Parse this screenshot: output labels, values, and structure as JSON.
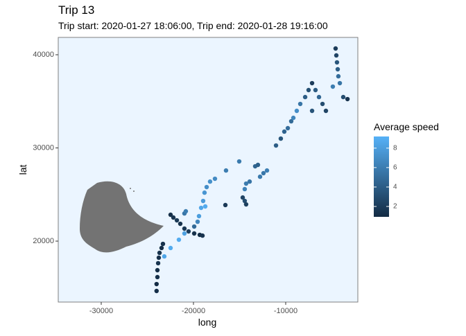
{
  "chart_data": {
    "type": "scatter",
    "title": "Trip 13",
    "subtitle": "Trip start: 2020-01-27 18:06:00, Trip end: 2020-01-28 19:16:00",
    "x_label": "long",
    "y_label": "lat",
    "xlim": [
      -34660,
      -2180
    ],
    "ylim": [
      13460,
      41860
    ],
    "xticks": [
      -30000,
      -20000,
      -10000
    ],
    "yticks": [
      20000,
      30000,
      40000
    ],
    "legend_title": "Average speed",
    "colorlim": [
      0.93,
      9.2
    ],
    "colorticks": [
      2,
      4,
      6,
      8
    ],
    "colorscale": [
      "#132B43",
      "#56B1F7"
    ],
    "land_color": "#737373",
    "panel_color": "#EBF5FF",
    "x": [
      -24000,
      -24000,
      -23910,
      -23910,
      -23830,
      -23760,
      -23680,
      -23460,
      -23310,
      -23160,
      -22480,
      -21580,
      -20980,
      -22480,
      -22180,
      -21800,
      -21430,
      -20980,
      -20530,
      -19920,
      -19320,
      -19020,
      -20980,
      -20830,
      -19920,
      -19550,
      -19400,
      -19170,
      -18950,
      -18800,
      -18570,
      -18200,
      -17670,
      -18720,
      -16470,
      -15040,
      -14440,
      -14290,
      -13910,
      -14660,
      -14440,
      -14290,
      -16540,
      -13310,
      -13010,
      -12780,
      -12410,
      -12030,
      -11050,
      -10530,
      -10150,
      -9770,
      -9400,
      -9170,
      -8800,
      -8420,
      -7890,
      -7520,
      -7140,
      -6770,
      -6390,
      -6010,
      -5640,
      -7140,
      -4590,
      -4510,
      -4440,
      -4360,
      -4290,
      -4130,
      -4890,
      -3760,
      -3300
    ],
    "y": [
      14650,
      15390,
      16140,
      16880,
      17630,
      18220,
      18740,
      19260,
      19700,
      18360,
      19260,
      20150,
      20820,
      22830,
      22530,
      22230,
      21860,
      21340,
      21040,
      20820,
      20670,
      20590,
      22970,
      23200,
      21560,
      22080,
      22680,
      23570,
      24310,
      25200,
      25800,
      26390,
      26690,
      23720,
      27580,
      28550,
      25580,
      26170,
      26390,
      24680,
      24310,
      23940,
      23870,
      28030,
      28180,
      26910,
      27290,
      27580,
      30260,
      31000,
      31750,
      32120,
      32860,
      33230,
      33980,
      34720,
      35460,
      36210,
      36950,
      36210,
      35460,
      34720,
      33980,
      33980,
      40670,
      39930,
      39180,
      38440,
      37690,
      36950,
      36580,
      35460,
      35240
    ],
    "speed": [
      1.2,
      1.0,
      1.3,
      1.1,
      1.5,
      1.2,
      1.4,
      1.0,
      1.3,
      8.5,
      8.8,
      8.9,
      8.2,
      1.2,
      1.5,
      1.8,
      1.4,
      1.6,
      2.0,
      1.3,
      1.1,
      1.5,
      5.5,
      6.0,
      4.8,
      6.5,
      8.0,
      8.5,
      7.8,
      7.5,
      7.0,
      7.2,
      6.8,
      8.8,
      6.0,
      5.8,
      6.3,
      5.9,
      5.5,
      2.5,
      3.0,
      2.2,
      1.8,
      4.5,
      4.2,
      5.8,
      5.6,
      6.1,
      4.0,
      3.5,
      4.4,
      5.0,
      4.8,
      6.5,
      7.0,
      5.5,
      4.0,
      3.2,
      2.0,
      3.8,
      4.6,
      3.0,
      2.5,
      3.4,
      2.0,
      2.5,
      3.5,
      4.0,
      5.0,
      5.5,
      6.0,
      3.0,
      1.5
    ]
  }
}
